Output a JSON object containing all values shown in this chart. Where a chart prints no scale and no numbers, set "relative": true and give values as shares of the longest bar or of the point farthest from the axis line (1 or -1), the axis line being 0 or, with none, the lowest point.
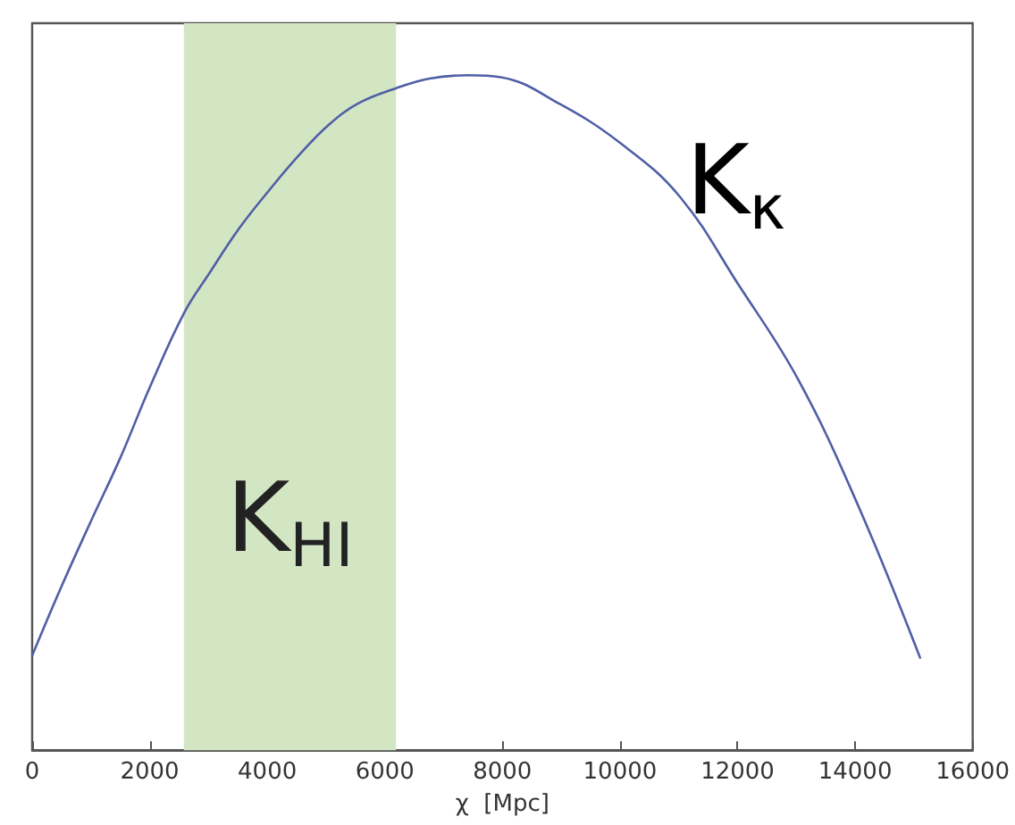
{
  "chart_data": {
    "type": "line",
    "relative": true,
    "xlabel": "χ  [Mpc]",
    "x": [
      0,
      486,
      993,
      1499,
      2003,
      2592,
      3017,
      3521,
      4027,
      4534,
      5038,
      5545,
      6203,
      6759,
      7418,
      7972,
      8983,
      9997,
      11008,
      12020,
      13032,
      14043,
      15105
    ],
    "series": [
      {
        "color": "#4f5fa6",
        "values": [
          0.14,
          0.24,
          0.338,
          0.433,
          0.538,
          0.649,
          0.707,
          0.773,
          0.829,
          0.881,
          0.926,
          0.958,
          0.981,
          0.995,
          1,
          0.997,
          0.957,
          0.9,
          0.821,
          0.689,
          0.549,
          0.364,
          0.137
        ]
      }
    ],
    "xlim": [
      0,
      16000
    ],
    "xticks": [
      0,
      2000,
      4000,
      6000,
      8000,
      10000,
      12000,
      14000,
      16000
    ],
    "bands": [
      {
        "axis": "x",
        "from": 2580,
        "to": 6190,
        "label": "K$_{HI}$",
        "color": "#d3e6c4"
      }
    ],
    "annotations": [
      "K$_{κ}$"
    ],
    "tick_labels": "x",
    "grid": false,
    "marker": "none",
    "line_style": "solid"
  }
}
